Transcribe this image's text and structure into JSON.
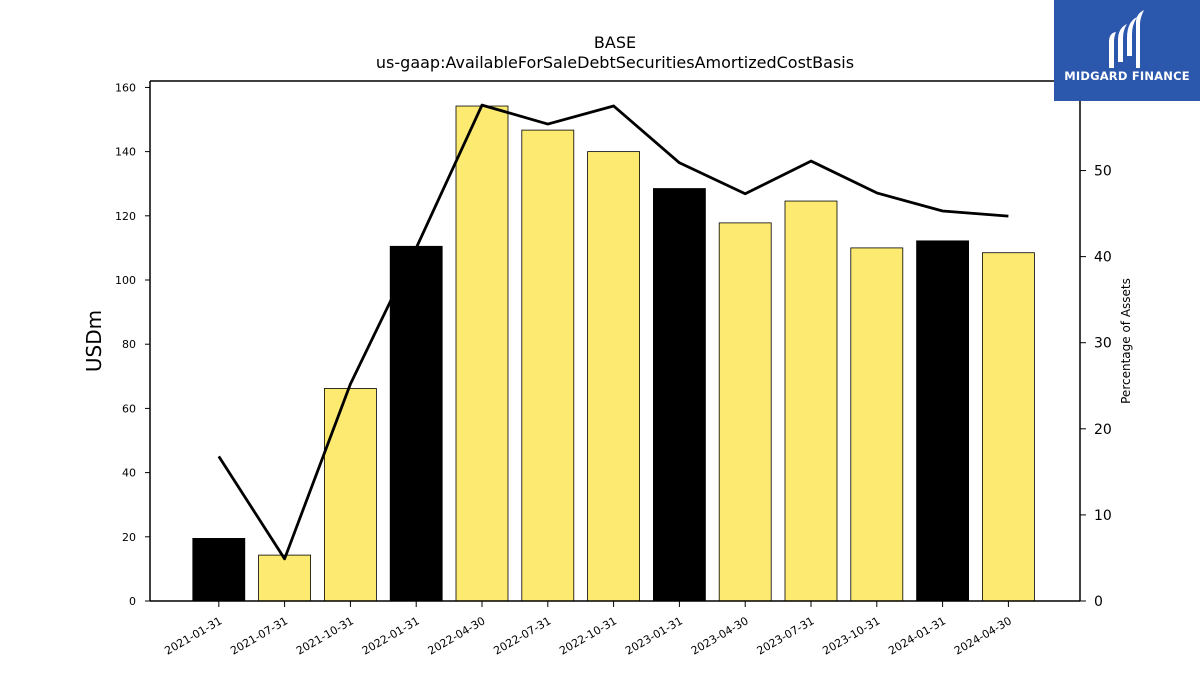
{
  "chart_data": {
    "type": "bar",
    "title": "BASE",
    "subtitle": "us-gaap:AvailableForSaleDebtSecuritiesAmortizedCostBasis",
    "ylabel": "USDm",
    "y2label": "Percentage of Assets",
    "categories": [
      "2021-01-31",
      "2021-07-31",
      "2021-10-31",
      "2022-01-31",
      "2022-04-30",
      "2022-07-31",
      "2022-10-31",
      "2023-01-31",
      "2023-04-30",
      "2023-07-31",
      "2023-10-31",
      "2024-01-31",
      "2024-04-30"
    ],
    "series": [
      {
        "type": "bar",
        "axis": "left",
        "values": [
          19.5,
          14.3,
          66.2,
          110.5,
          154.2,
          146.7,
          140.0,
          128.5,
          117.8,
          124.6,
          110.0,
          112.2,
          108.5
        ],
        "colors": [
          "#000000",
          "#fdeb71",
          "#fdeb71",
          "#000000",
          "#fdeb71",
          "#fdeb71",
          "#fdeb71",
          "#000000",
          "#fdeb71",
          "#fdeb71",
          "#fdeb71",
          "#000000",
          "#fdeb71"
        ]
      },
      {
        "type": "line",
        "axis": "right",
        "values": [
          16.8,
          4.9,
          25.2,
          41.0,
          57.6,
          55.4,
          57.5,
          50.9,
          47.3,
          51.1,
          47.4,
          45.3,
          44.7
        ],
        "color": "#000000"
      }
    ],
    "ylim": [
      0,
      162
    ],
    "y2lim": [
      0,
      60.4
    ],
    "yticks": [
      0,
      20,
      40,
      60,
      80,
      100,
      120,
      140,
      160
    ],
    "y2ticks": [
      0,
      10,
      20,
      30,
      40,
      50
    ],
    "grid": false
  },
  "logo": {
    "text": "MIDGARD FINANCE",
    "background": "#2b57ad"
  }
}
